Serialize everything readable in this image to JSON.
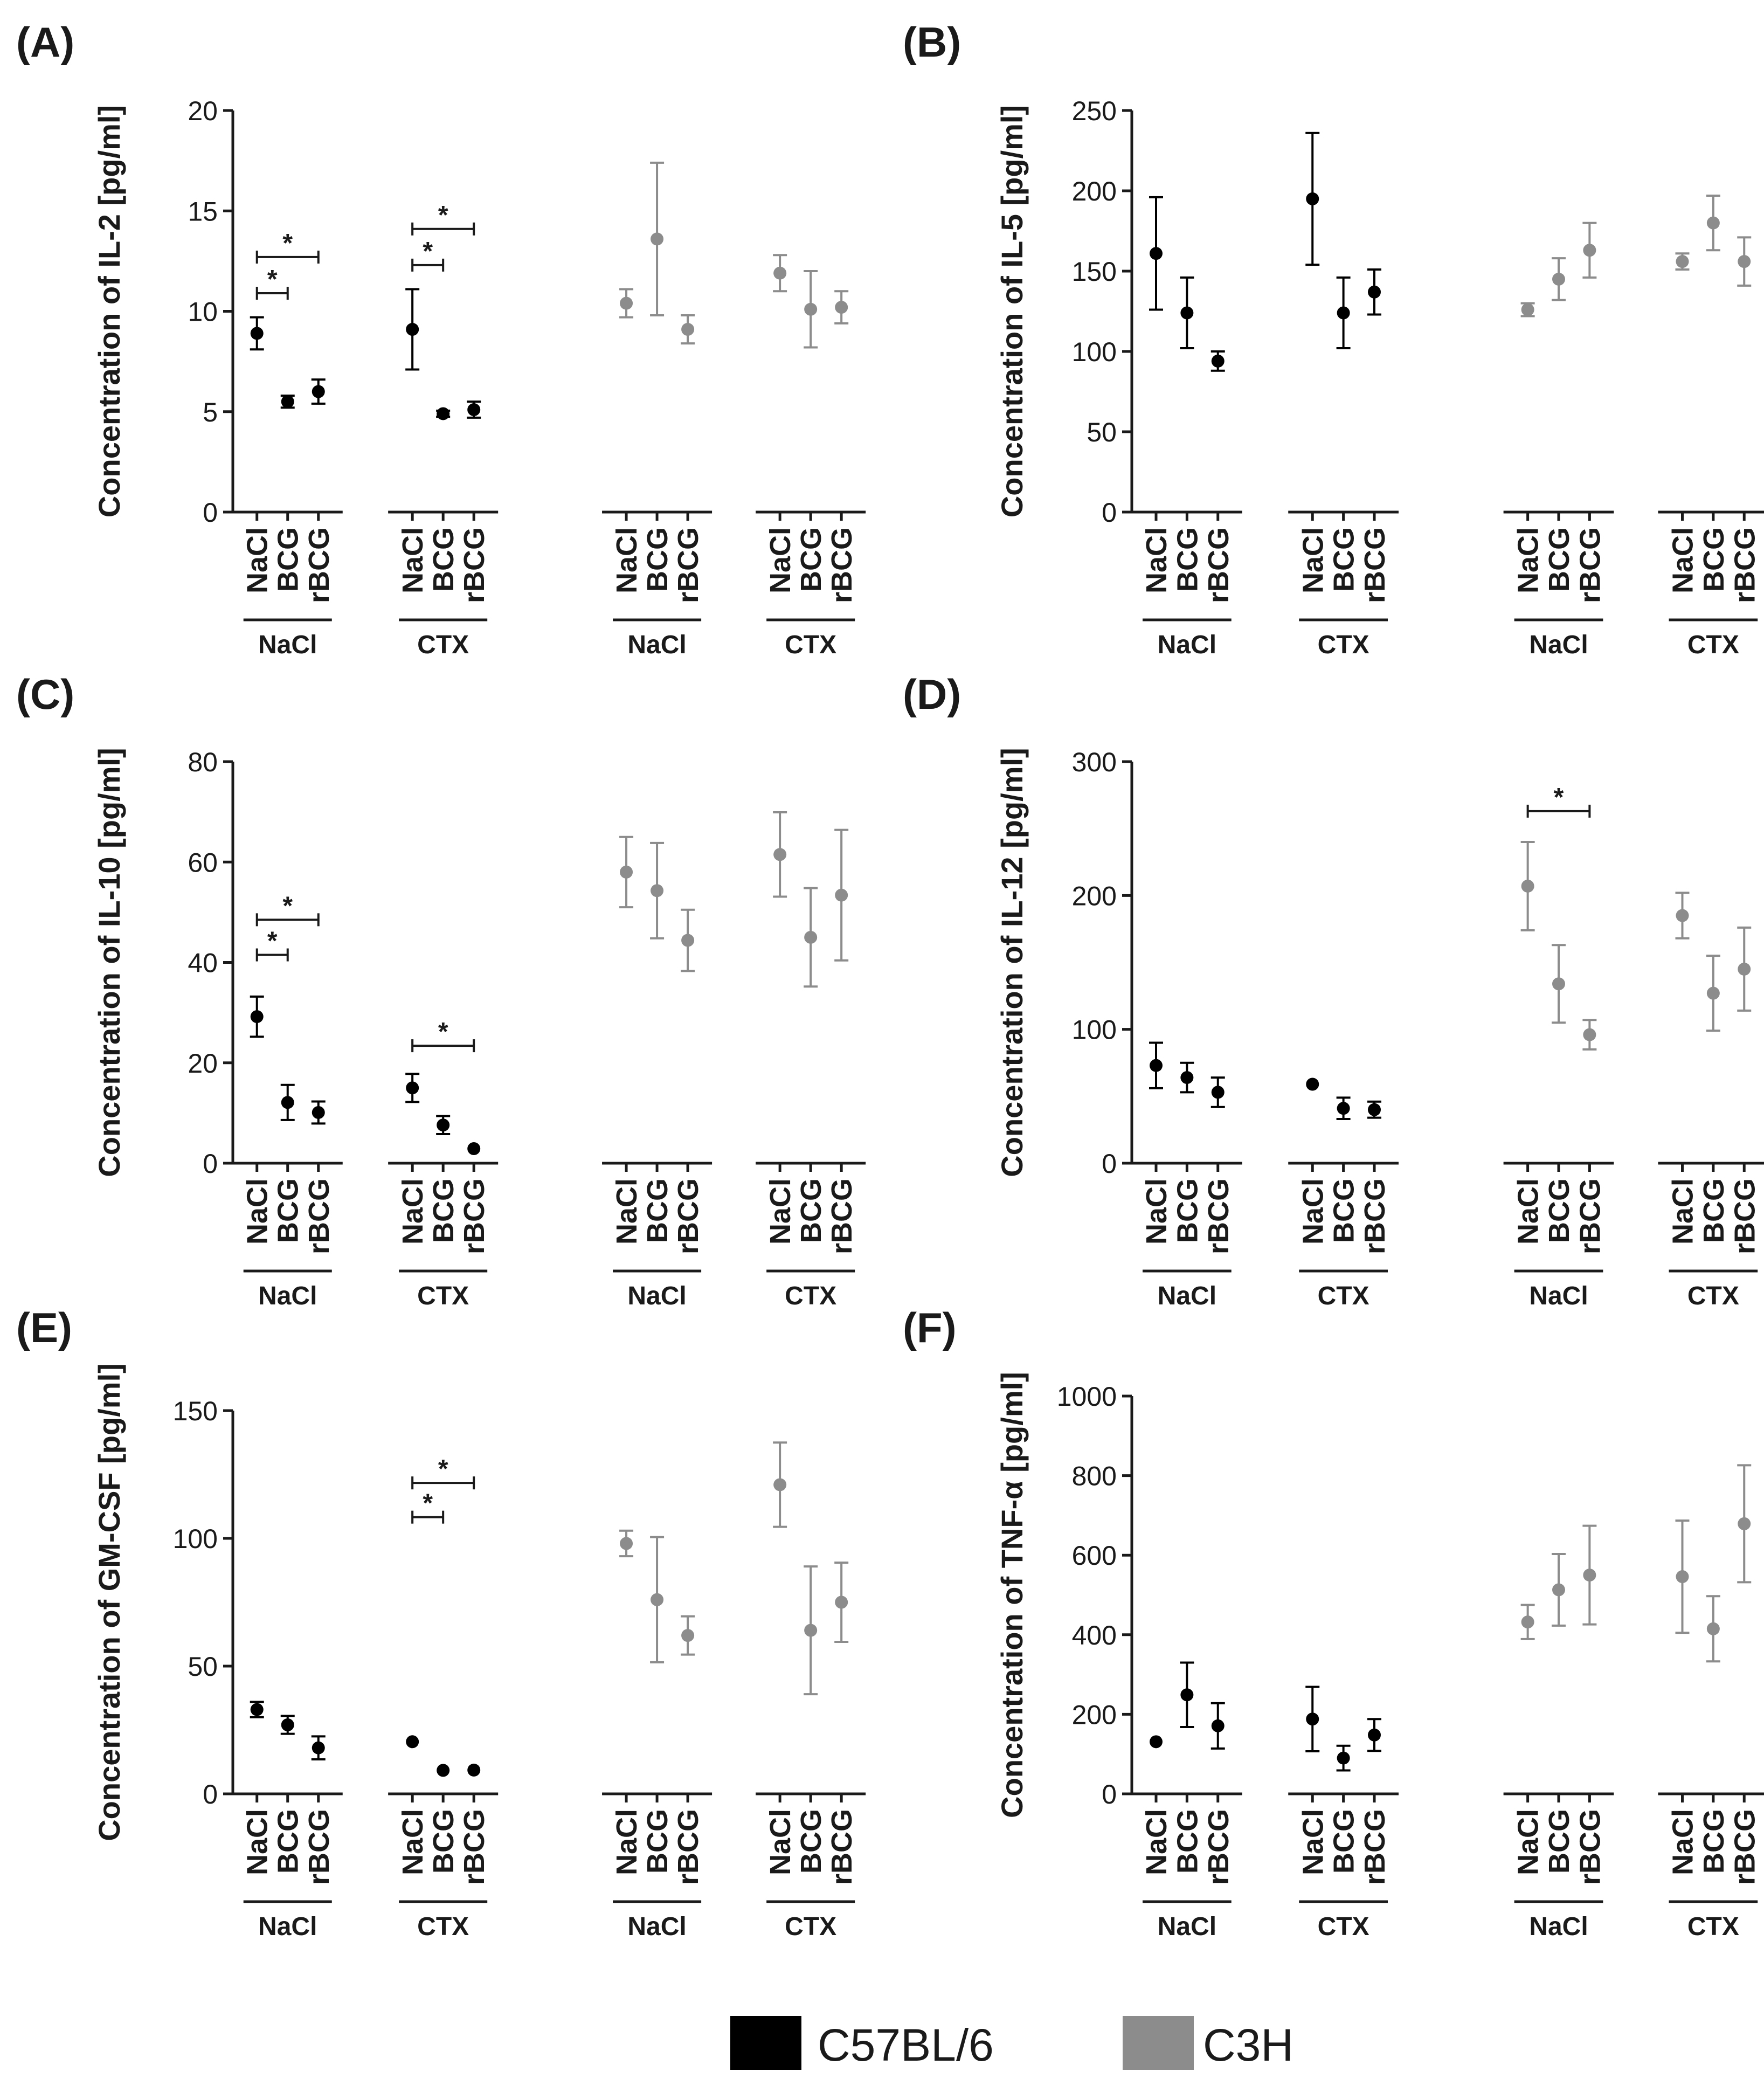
{
  "figure": {
    "legend": [
      {
        "label": "C57BL/6",
        "color": "#000000"
      },
      {
        "label": "C3H",
        "color": "#8c8c8c"
      }
    ]
  },
  "chart_data": [
    {
      "type": "scatter",
      "panel": "(A)",
      "ylabel": "Concentration of IL-2 [pg/ml]",
      "ylim": [
        0,
        20
      ],
      "yticks": [
        0,
        5,
        10,
        15,
        20
      ],
      "categories": [
        "NaCl",
        "BCG",
        "rBCG",
        "NaCl",
        "BCG",
        "rBCG",
        "NaCl",
        "BCG",
        "rBCG",
        "NaCl",
        "BCG",
        "rBCG"
      ],
      "group_labels": [
        "NaCl",
        "CTX",
        "NaCl",
        "CTX"
      ],
      "series": [
        {
          "name": "C57BL/6",
          "values": [
            8.9,
            5.5,
            6.0,
            9.1,
            4.9,
            5.1
          ],
          "errors": [
            0.8,
            0.3,
            0.6,
            2.0,
            0.15,
            0.4
          ]
        },
        {
          "name": "C3H",
          "values": [
            10.4,
            13.6,
            9.1,
            11.9,
            10.1,
            10.2
          ],
          "errors": [
            0.7,
            3.8,
            0.7,
            0.9,
            1.9,
            0.8
          ]
        }
      ],
      "significance": [
        {
          "from": 0,
          "to": 1,
          "label": "*",
          "y": 10.9
        },
        {
          "from": 0,
          "to": 2,
          "label": "*",
          "y": 12.7
        },
        {
          "from": 3,
          "to": 4,
          "label": "*",
          "y": 12.3
        },
        {
          "from": 3,
          "to": 5,
          "label": "*",
          "y": 14.1
        }
      ]
    },
    {
      "type": "scatter",
      "panel": "(B)",
      "ylabel": "Concentration of IL-5 [pg/ml]",
      "ylim": [
        0,
        250
      ],
      "yticks": [
        0,
        50,
        100,
        150,
        200,
        250
      ],
      "categories": [
        "NaCl",
        "BCG",
        "rBCG",
        "NaCl",
        "BCG",
        "rBCG",
        "NaCl",
        "BCG",
        "rBCG",
        "NaCl",
        "BCG",
        "rBCG"
      ],
      "group_labels": [
        "NaCl",
        "CTX",
        "NaCl",
        "CTX"
      ],
      "series": [
        {
          "name": "C57BL/6",
          "values": [
            161,
            124,
            94,
            195,
            124,
            137
          ],
          "errors": [
            35,
            22,
            6,
            41,
            22,
            14
          ]
        },
        {
          "name": "C3H",
          "values": [
            126,
            145,
            163,
            156,
            180,
            156
          ],
          "errors": [
            4,
            13,
            17,
            5,
            17,
            15
          ]
        }
      ],
      "significance": []
    },
    {
      "type": "scatter",
      "panel": "(C)",
      "ylabel": "Concentration of IL-10 [pg/ml]",
      "ylim": [
        0,
        80
      ],
      "yticks": [
        0,
        20,
        40,
        60,
        80
      ],
      "categories": [
        "NaCl",
        "BCG",
        "rBCG",
        "NaCl",
        "BCG",
        "rBCG",
        "NaCl",
        "BCG",
        "rBCG",
        "NaCl",
        "BCG",
        "rBCG"
      ],
      "group_labels": [
        "NaCl",
        "CTX",
        "NaCl",
        "CTX"
      ],
      "series": [
        {
          "name": "C57BL/6",
          "values": [
            29.2,
            12.1,
            10.1,
            15.0,
            7.6,
            2.9
          ],
          "errors": [
            4.0,
            3.5,
            2.2,
            2.8,
            1.8,
            0.4
          ]
        },
        {
          "name": "C3H",
          "values": [
            58.0,
            54.3,
            44.4,
            61.5,
            45.0,
            53.4
          ],
          "errors": [
            7.0,
            9.5,
            6.1,
            8.4,
            9.8,
            13.0
          ]
        }
      ],
      "significance": [
        {
          "from": 0,
          "to": 1,
          "label": "*",
          "y": 41.5
        },
        {
          "from": 0,
          "to": 2,
          "label": "*",
          "y": 48.5
        },
        {
          "from": 3,
          "to": 5,
          "label": "*",
          "y": 23.4
        }
      ]
    },
    {
      "type": "scatter",
      "panel": "(D)",
      "ylabel": "Concentration of IL-12 [pg/ml]",
      "ylim": [
        0,
        300
      ],
      "yticks": [
        0,
        100,
        200,
        300
      ],
      "categories": [
        "NaCl",
        "BCG",
        "rBCG",
        "NaCl",
        "BCG",
        "rBCG",
        "NaCl",
        "BCG",
        "rBCG",
        "NaCl",
        "BCG",
        "rBCG"
      ],
      "group_labels": [
        "NaCl",
        "CTX",
        "NaCl",
        "CTX"
      ],
      "series": [
        {
          "name": "C57BL/6",
          "values": [
            73,
            64,
            53,
            59,
            41,
            40
          ],
          "errors": [
            17,
            11,
            11,
            2,
            8,
            6
          ]
        },
        {
          "name": "C3H",
          "values": [
            207,
            134,
            96,
            185,
            127,
            145
          ],
          "errors": [
            33,
            29,
            11,
            17,
            28,
            31
          ]
        }
      ],
      "significance": [
        {
          "from": 6,
          "to": 8,
          "label": "*",
          "y": 263
        }
      ]
    },
    {
      "type": "scatter",
      "panel": "(E)",
      "ylabel": "Concentration of GM-CSF [pg/ml]",
      "ylim": [
        0,
        150
      ],
      "yticks": [
        0,
        50,
        100,
        150
      ],
      "categories": [
        "NaCl",
        "BCG",
        "rBCG",
        "NaCl",
        "BCG",
        "rBCG",
        "NaCl",
        "BCG",
        "rBCG",
        "NaCl",
        "BCG",
        "rBCG"
      ],
      "group_labels": [
        "NaCl",
        "CTX",
        "NaCl",
        "CTX"
      ],
      "series": [
        {
          "name": "C57BL/6",
          "values": [
            33,
            27,
            18,
            20.4,
            9.2,
            9.3
          ],
          "errors": [
            3,
            3.5,
            4.5,
            0.5,
            0.3,
            0.3
          ]
        },
        {
          "name": "C3H",
          "values": [
            98,
            76,
            62,
            121,
            64,
            75
          ],
          "errors": [
            5,
            24.5,
            7.5,
            16.5,
            25,
            15.5
          ]
        }
      ],
      "significance": [
        {
          "from": 3,
          "to": 4,
          "label": "*",
          "y": 108.3
        },
        {
          "from": 3,
          "to": 5,
          "label": "*",
          "y": 121.7
        }
      ]
    },
    {
      "type": "scatter",
      "panel": "(F)",
      "ylabel": "Concentration of TNF-α [pg/ml]",
      "ylim": [
        0,
        1000
      ],
      "yticks": [
        0,
        200,
        400,
        600,
        800,
        1000
      ],
      "categories": [
        "NaCl",
        "BCG",
        "rBCG",
        "NaCl",
        "BCG",
        "rBCG",
        "NaCl",
        "BCG",
        "rBCG",
        "NaCl",
        "BCG",
        "rBCG"
      ],
      "group_labels": [
        "NaCl",
        "CTX",
        "NaCl",
        "CTX"
      ],
      "series": [
        {
          "name": "C57BL/6",
          "values": [
            131,
            249,
            171,
            188,
            90,
            148
          ],
          "errors": [
            5,
            81,
            57,
            81,
            31,
            40
          ]
        },
        {
          "name": "C3H",
          "values": [
            432,
            513,
            550,
            546,
            415,
            679
          ],
          "errors": [
            43,
            90,
            124,
            141,
            82,
            147
          ]
        }
      ],
      "significance": []
    }
  ]
}
